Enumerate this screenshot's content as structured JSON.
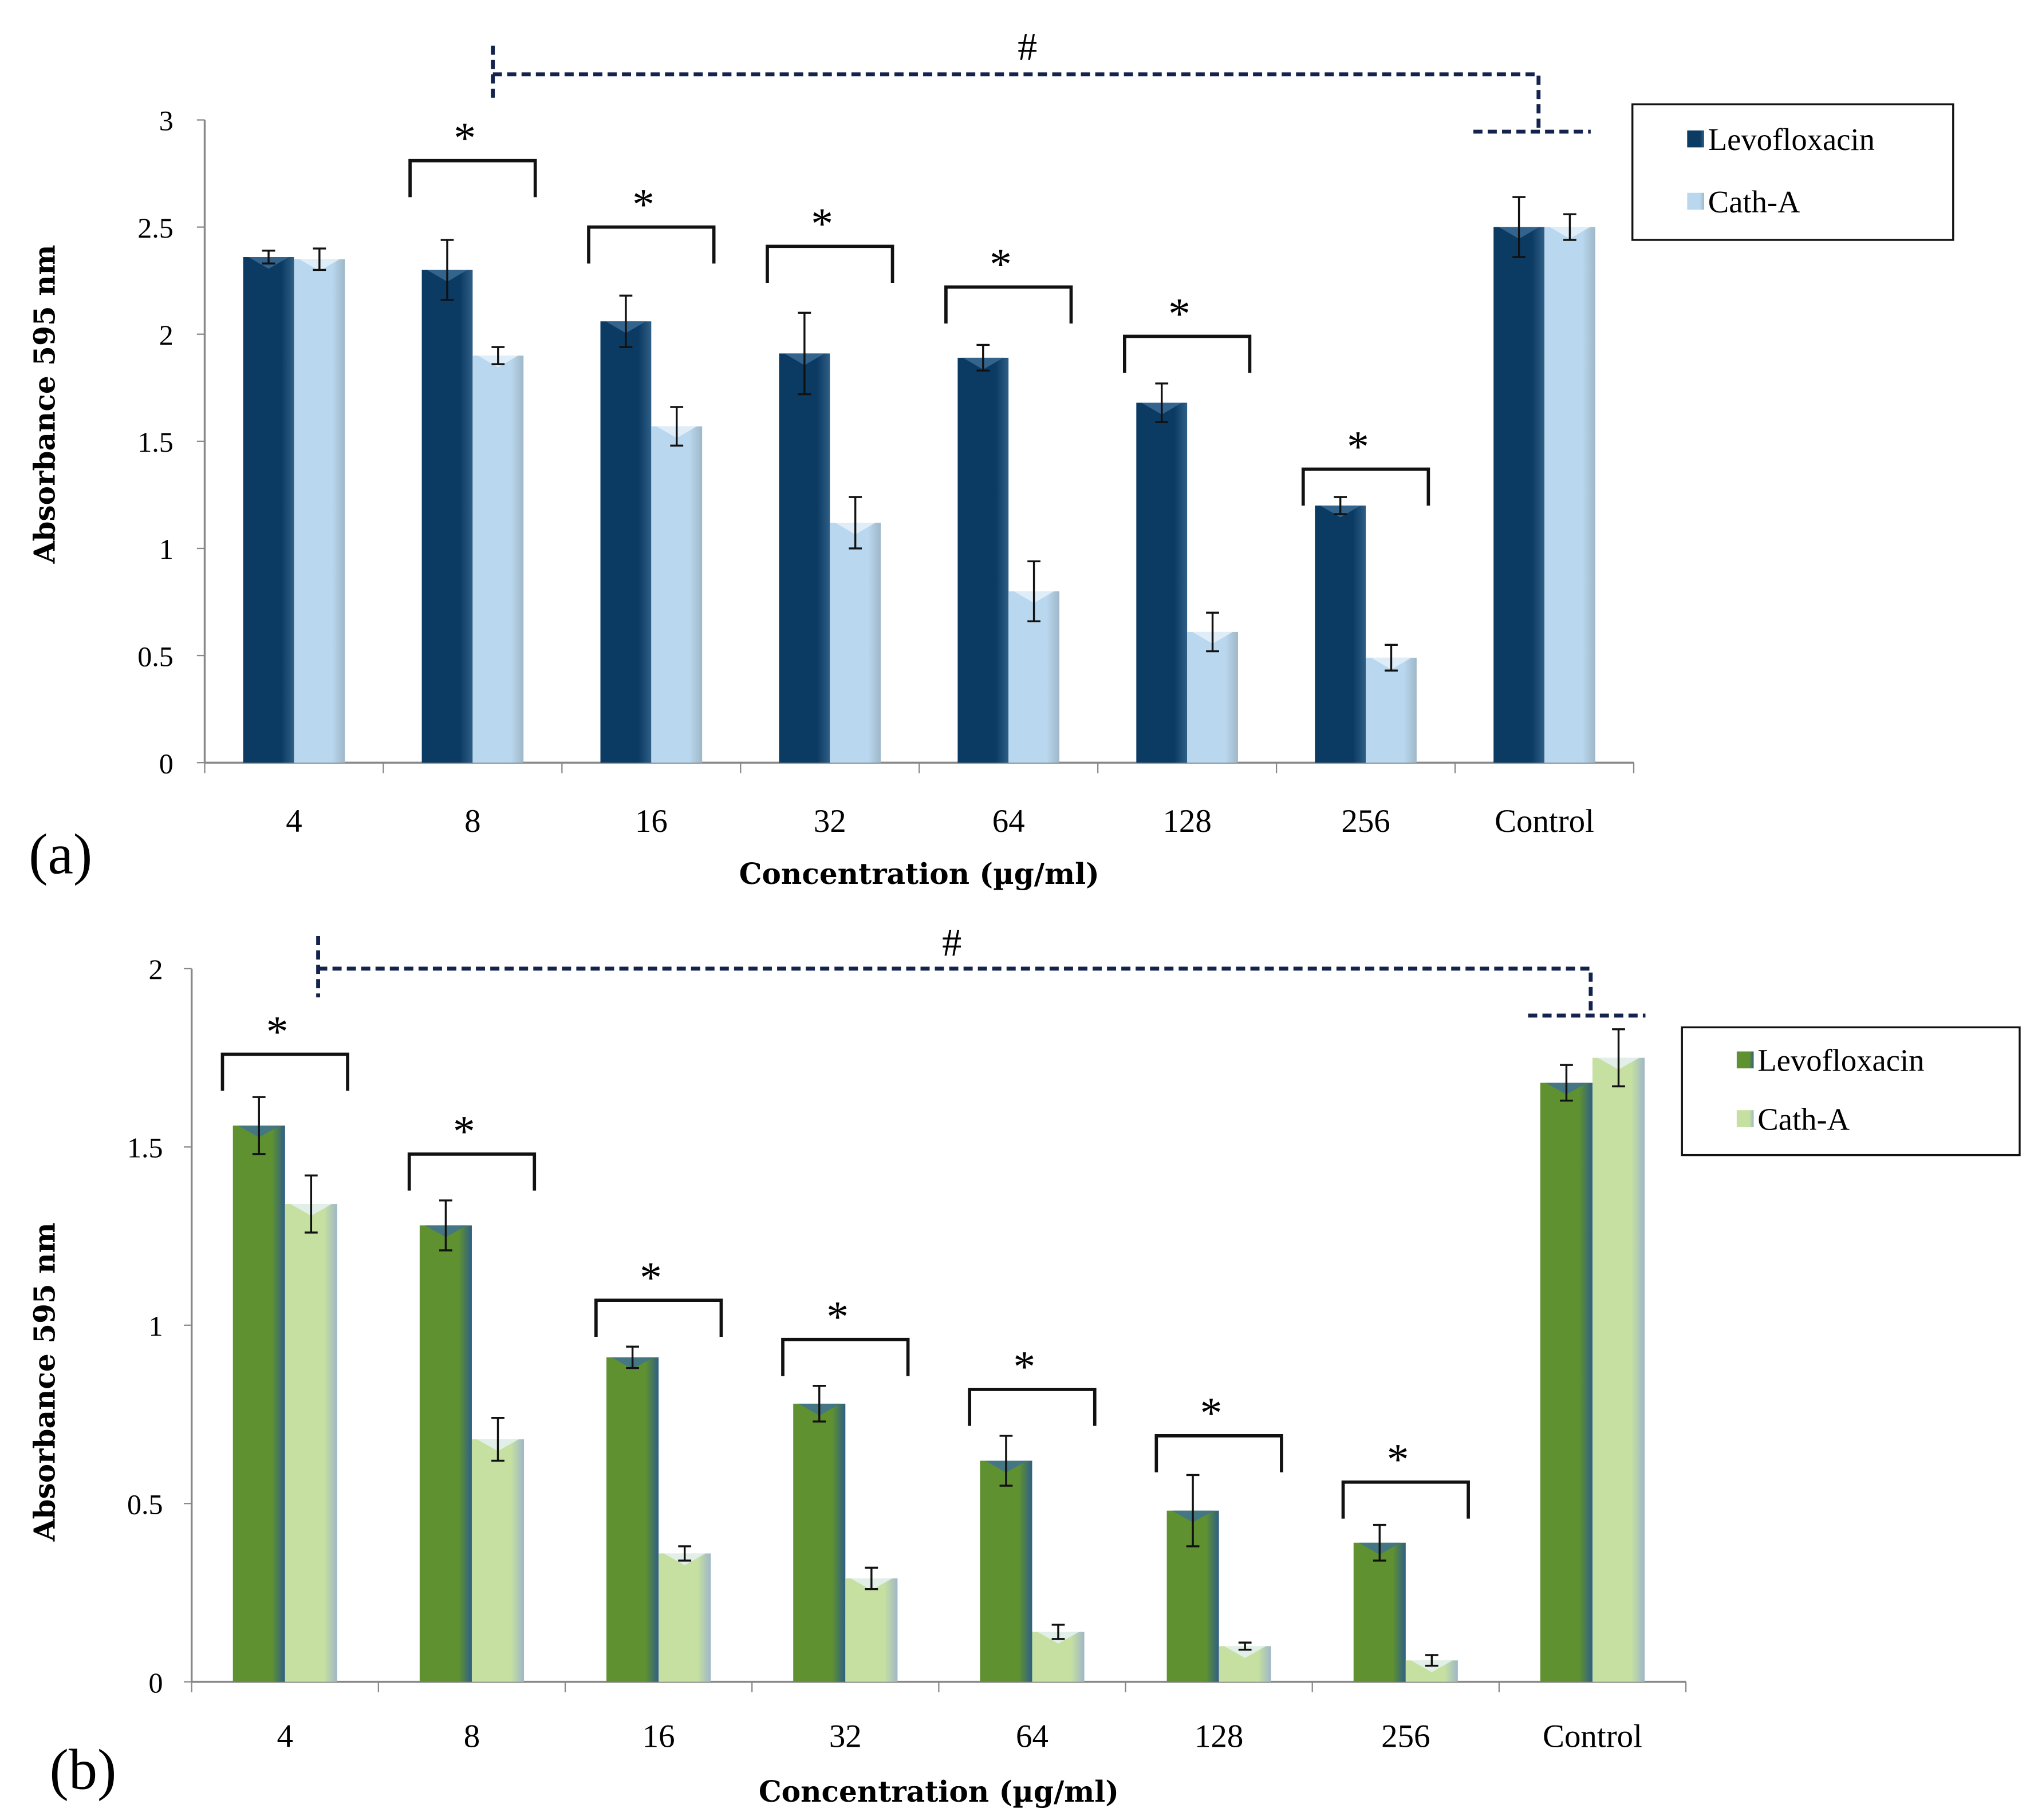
{
  "chart_data": [
    {
      "type": "bar",
      "panel_label": "(a)",
      "xlabel": "Concentration (µg/ml)",
      "ylabel": "Absorbance 595 nm",
      "ylim": [
        0,
        3
      ],
      "yticks": [
        "0",
        "0.5",
        "1",
        "1.5",
        "2",
        "2.5",
        "3"
      ],
      "categories": [
        "4",
        "8",
        "16",
        "32",
        "64",
        "128",
        "256",
        "Control"
      ],
      "series": [
        {
          "name": "Levofloxacin",
          "color": "#0b3a63",
          "values": [
            2.36,
            2.3,
            2.06,
            1.91,
            1.89,
            1.68,
            1.2,
            2.5
          ],
          "errors": [
            0.03,
            0.14,
            0.12,
            0.19,
            0.06,
            0.09,
            0.04,
            0.14
          ]
        },
        {
          "name": "Cath-A",
          "color": "#b9d7ee",
          "values": [
            2.35,
            1.9,
            1.57,
            1.12,
            0.8,
            0.61,
            0.49,
            2.5
          ],
          "errors": [
            0.05,
            0.04,
            0.09,
            0.12,
            0.14,
            0.09,
            0.06,
            0.06
          ]
        }
      ],
      "significance": {
        "symbol": "*",
        "categories": [
          "8",
          "16",
          "32",
          "64",
          "128",
          "256"
        ],
        "levels": [
          2.81,
          2.5,
          2.41,
          2.22,
          1.99,
          1.37
        ]
      },
      "hash_annotation": {
        "symbol": "#",
        "from": "8",
        "to": "Control"
      },
      "legend": "right"
    },
    {
      "type": "bar",
      "panel_label": "(b)",
      "xlabel": "Concentration (µg/ml)",
      "ylabel": "Absorbance 595 nm",
      "ylim": [
        0,
        2
      ],
      "yticks": [
        "0",
        "0.5",
        "1",
        "1.5",
        "2"
      ],
      "categories": [
        "4",
        "8",
        "16",
        "32",
        "64",
        "128",
        "256",
        "Control"
      ],
      "series": [
        {
          "name": "Levofloxacin",
          "color": "#5f9131",
          "values": [
            1.56,
            1.28,
            0.91,
            0.78,
            0.62,
            0.48,
            0.39,
            1.68
          ],
          "errors": [
            0.08,
            0.07,
            0.03,
            0.05,
            0.07,
            0.1,
            0.05,
            0.05
          ]
        },
        {
          "name": "Cath-A",
          "color": "#c5e0a0",
          "values": [
            1.34,
            0.68,
            0.36,
            0.29,
            0.14,
            0.1,
            0.06,
            1.75
          ],
          "errors": [
            0.08,
            0.06,
            0.02,
            0.03,
            0.02,
            0.01,
            0.015,
            0.08
          ]
        }
      ],
      "significance": {
        "symbol": "*",
        "categories": [
          "4",
          "8",
          "16",
          "32",
          "64",
          "128",
          "256"
        ],
        "levels": [
          1.76,
          1.48,
          1.07,
          0.96,
          0.82,
          0.69,
          0.56
        ]
      },
      "hash_annotation": {
        "symbol": "#",
        "from": "4",
        "to": "Control"
      },
      "legend": "right"
    }
  ]
}
